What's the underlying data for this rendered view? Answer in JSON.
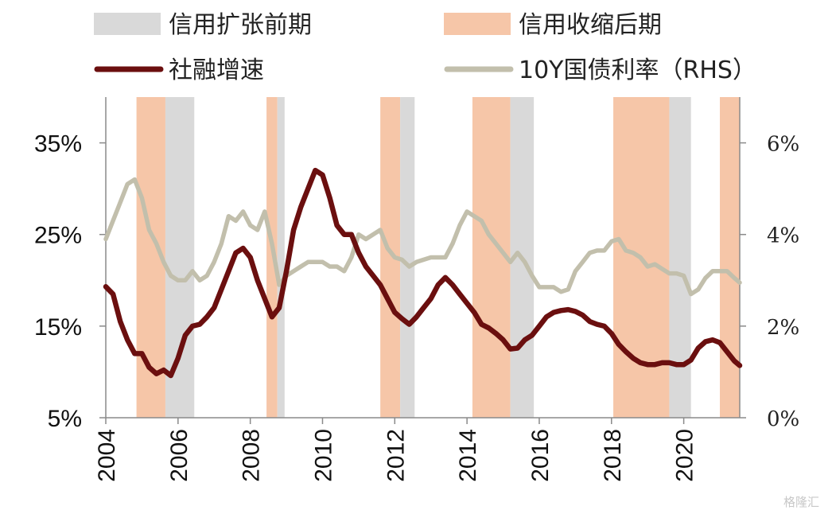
{
  "chart_data": {
    "type": "line",
    "legend": {
      "placement": "top",
      "entries": [
        {
          "key": "expansion",
          "label": "信用扩张前期",
          "kind": "band",
          "color": "#d9d9d9"
        },
        {
          "key": "contraction",
          "label": "信用收缩后期",
          "kind": "band",
          "color": "#f6c6a8"
        },
        {
          "key": "tsf",
          "label": "社融增速",
          "kind": "line",
          "color": "#6b0f0f"
        },
        {
          "key": "bond",
          "label": "10Y国债利率（RHS）",
          "kind": "line",
          "color": "#c2bfac"
        }
      ]
    },
    "x_axis": {
      "range": [
        2004.0,
        2021.55
      ],
      "tick_values": [
        2004,
        2006,
        2008,
        2010,
        2012,
        2014,
        2016,
        2018,
        2020
      ],
      "tick_labels": [
        "2004",
        "2006",
        "2008",
        "2010",
        "2012",
        "2014",
        "2016",
        "2018",
        "2020"
      ]
    },
    "y_left": {
      "range": [
        5,
        40
      ],
      "tick_values": [
        5,
        15,
        25,
        35
      ],
      "tick_labels": [
        "5%",
        "15%",
        "25%",
        "35%"
      ]
    },
    "y_right": {
      "range": [
        0,
        7
      ],
      "tick_values": [
        0,
        2,
        4,
        6
      ],
      "tick_labels": [
        "0%",
        "2%",
        "4%",
        "6%"
      ]
    },
    "grid": false,
    "bands": {
      "contraction": [
        [
          2004.85,
          2005.65
        ],
        [
          2008.45,
          2008.75
        ],
        [
          2011.6,
          2012.15
        ],
        [
          2014.15,
          2015.2
        ],
        [
          2018.05,
          2019.6
        ],
        [
          2021.0,
          2021.55
        ]
      ],
      "expansion": [
        [
          2005.65,
          2006.45
        ],
        [
          2008.75,
          2008.95
        ],
        [
          2012.15,
          2012.55
        ],
        [
          2015.2,
          2015.85
        ],
        [
          2019.6,
          2020.2
        ]
      ]
    },
    "series": [
      {
        "name": "社融增速",
        "axis": "left",
        "color": "#6b0f0f",
        "x": [
          2004.0,
          2004.2,
          2004.4,
          2004.6,
          2004.8,
          2005.0,
          2005.2,
          2005.4,
          2005.6,
          2005.8,
          2006.0,
          2006.2,
          2006.4,
          2006.6,
          2006.8,
          2007.0,
          2007.2,
          2007.4,
          2007.6,
          2007.8,
          2008.0,
          2008.2,
          2008.4,
          2008.6,
          2008.8,
          2009.0,
          2009.2,
          2009.4,
          2009.6,
          2009.8,
          2010.0,
          2010.2,
          2010.4,
          2010.6,
          2010.8,
          2011.0,
          2011.2,
          2011.4,
          2011.6,
          2011.8,
          2012.0,
          2012.2,
          2012.4,
          2012.6,
          2012.8,
          2013.0,
          2013.2,
          2013.4,
          2013.6,
          2013.8,
          2014.0,
          2014.2,
          2014.4,
          2014.6,
          2014.8,
          2015.0,
          2015.2,
          2015.4,
          2015.6,
          2015.8,
          2016.0,
          2016.2,
          2016.4,
          2016.6,
          2016.8,
          2017.0,
          2017.2,
          2017.4,
          2017.6,
          2017.8,
          2018.0,
          2018.2,
          2018.4,
          2018.6,
          2018.8,
          2019.0,
          2019.2,
          2019.4,
          2019.6,
          2019.8,
          2020.0,
          2020.2,
          2020.4,
          2020.6,
          2020.8,
          2021.0,
          2021.2,
          2021.4,
          2021.55
        ],
        "values": [
          19.3,
          18.5,
          15.5,
          13.5,
          12.0,
          12.0,
          10.5,
          9.8,
          10.2,
          9.6,
          11.5,
          14.0,
          15.0,
          15.2,
          16.0,
          17.0,
          19.0,
          21.0,
          23.0,
          23.5,
          22.5,
          20.0,
          18.0,
          16.0,
          17.0,
          21.0,
          25.5,
          28.0,
          30.0,
          32.0,
          31.5,
          29.0,
          26.0,
          25.0,
          25.0,
          23.0,
          21.5,
          20.5,
          19.5,
          18.0,
          16.5,
          15.8,
          15.2,
          16.0,
          17.0,
          18.0,
          19.5,
          20.3,
          19.5,
          18.5,
          17.5,
          16.5,
          15.2,
          14.8,
          14.2,
          13.5,
          12.5,
          12.6,
          13.5,
          14.0,
          15.0,
          16.0,
          16.5,
          16.7,
          16.8,
          16.6,
          16.2,
          15.5,
          15.2,
          15.0,
          14.2,
          13.0,
          12.2,
          11.5,
          11.0,
          10.8,
          10.8,
          11.0,
          11.0,
          10.8,
          10.8,
          11.3,
          12.6,
          13.3,
          13.5,
          13.2,
          12.2,
          11.2,
          10.7
        ]
      },
      {
        "name": "10Y国债利率（RHS）",
        "axis": "right",
        "color": "#c2bfac",
        "x": [
          2004.0,
          2004.2,
          2004.4,
          2004.6,
          2004.8,
          2005.0,
          2005.2,
          2005.4,
          2005.6,
          2005.8,
          2006.0,
          2006.2,
          2006.4,
          2006.6,
          2006.8,
          2007.0,
          2007.2,
          2007.4,
          2007.6,
          2007.8,
          2008.0,
          2008.2,
          2008.4,
          2008.6,
          2008.8,
          2009.0,
          2009.2,
          2009.4,
          2009.6,
          2009.8,
          2010.0,
          2010.2,
          2010.4,
          2010.6,
          2010.8,
          2011.0,
          2011.2,
          2011.4,
          2011.6,
          2011.8,
          2012.0,
          2012.2,
          2012.4,
          2012.6,
          2012.8,
          2013.0,
          2013.2,
          2013.4,
          2013.6,
          2013.8,
          2014.0,
          2014.2,
          2014.4,
          2014.6,
          2014.8,
          2015.0,
          2015.2,
          2015.4,
          2015.6,
          2015.8,
          2016.0,
          2016.2,
          2016.4,
          2016.6,
          2016.8,
          2017.0,
          2017.2,
          2017.4,
          2017.6,
          2017.8,
          2018.0,
          2018.2,
          2018.4,
          2018.6,
          2018.8,
          2019.0,
          2019.2,
          2019.4,
          2019.6,
          2019.8,
          2020.0,
          2020.2,
          2020.4,
          2020.6,
          2020.8,
          2021.0,
          2021.2,
          2021.4,
          2021.55
        ],
        "values": [
          3.9,
          4.3,
          4.7,
          5.1,
          5.2,
          4.8,
          4.1,
          3.8,
          3.4,
          3.1,
          3.0,
          3.0,
          3.2,
          3.0,
          3.1,
          3.4,
          3.8,
          4.4,
          4.3,
          4.5,
          4.2,
          4.1,
          4.5,
          3.8,
          2.9,
          3.1,
          3.2,
          3.3,
          3.4,
          3.4,
          3.4,
          3.3,
          3.3,
          3.2,
          3.5,
          4.0,
          3.9,
          4.0,
          4.1,
          3.7,
          3.5,
          3.45,
          3.3,
          3.4,
          3.45,
          3.5,
          3.5,
          3.5,
          3.8,
          4.2,
          4.5,
          4.4,
          4.3,
          4.0,
          3.8,
          3.6,
          3.4,
          3.6,
          3.4,
          3.1,
          2.85,
          2.85,
          2.85,
          2.75,
          2.8,
          3.2,
          3.4,
          3.6,
          3.65,
          3.65,
          3.85,
          3.9,
          3.65,
          3.6,
          3.5,
          3.3,
          3.35,
          3.25,
          3.15,
          3.15,
          3.1,
          2.7,
          2.8,
          3.05,
          3.2,
          3.2,
          3.2,
          3.05,
          2.95
        ]
      }
    ]
  },
  "watermark": "格隆汇"
}
